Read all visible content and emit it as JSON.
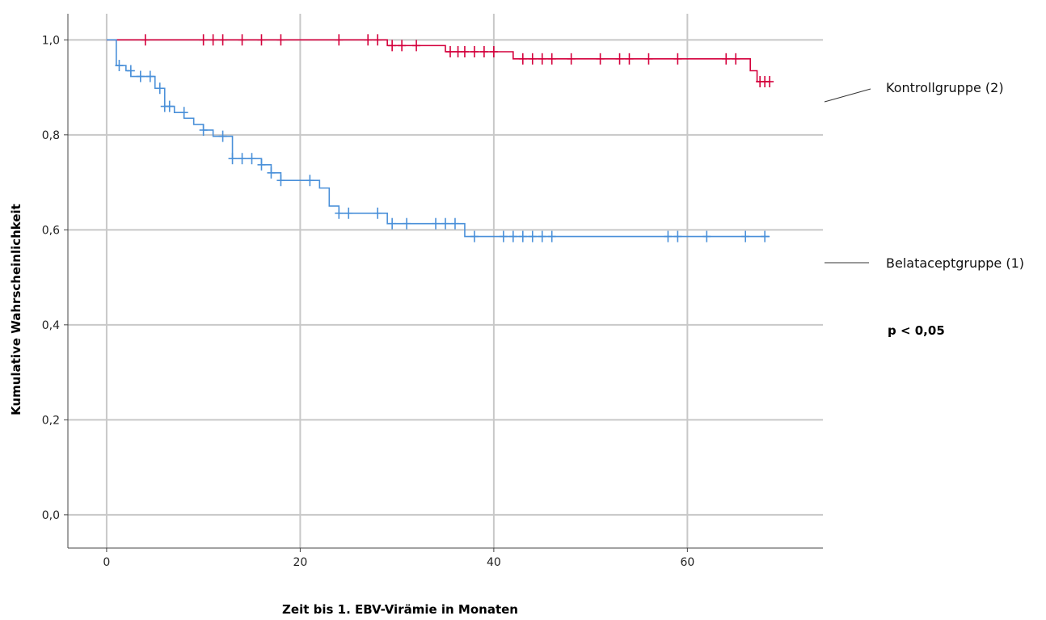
{
  "chart_data": {
    "type": "line",
    "title": "",
    "xlabel": "Zeit bis 1. EBV-Virämie in Monaten",
    "ylabel": "Kumulative Wahrscheinlichkeit",
    "xlim": [
      -4,
      74
    ],
    "ylim": [
      -0.07,
      1.055
    ],
    "x_ticks": [
      0,
      20,
      40,
      60
    ],
    "x_tick_labels": [
      "0",
      "20",
      "40",
      "60"
    ],
    "y_ticks": [
      0,
      0.2,
      0.4,
      0.6,
      0.8,
      1.0
    ],
    "y_tick_labels": [
      "0,0",
      "0,2",
      "0,4",
      "0,6",
      "0,8",
      "1,0"
    ],
    "grid": true,
    "annotation": "p < 0,05",
    "series": [
      {
        "name": "Kontrollgruppe (2)",
        "color": "#d4003c",
        "steps": [
          [
            0,
            1.0
          ],
          [
            29,
            0.988
          ],
          [
            35,
            0.975
          ],
          [
            42,
            0.96
          ],
          [
            66.5,
            0.935
          ],
          [
            67.2,
            0.912
          ],
          [
            68.5,
            0.912
          ]
        ],
        "censored": [
          [
            4,
            1.0
          ],
          [
            10,
            1.0
          ],
          [
            11,
            1.0
          ],
          [
            12,
            1.0
          ],
          [
            14,
            1.0
          ],
          [
            16,
            1.0
          ],
          [
            18,
            1.0
          ],
          [
            24,
            1.0
          ],
          [
            27,
            1.0
          ],
          [
            28,
            1.0
          ],
          [
            29.5,
            0.988
          ],
          [
            30.5,
            0.988
          ],
          [
            32,
            0.988
          ],
          [
            35.5,
            0.975
          ],
          [
            36.3,
            0.975
          ],
          [
            37,
            0.975
          ],
          [
            38,
            0.975
          ],
          [
            39,
            0.975
          ],
          [
            40,
            0.975
          ],
          [
            43,
            0.96
          ],
          [
            44,
            0.96
          ],
          [
            45,
            0.96
          ],
          [
            46,
            0.96
          ],
          [
            48,
            0.96
          ],
          [
            51,
            0.96
          ],
          [
            53,
            0.96
          ],
          [
            54,
            0.96
          ],
          [
            56,
            0.96
          ],
          [
            59,
            0.96
          ],
          [
            64,
            0.96
          ],
          [
            65,
            0.96
          ],
          [
            67.5,
            0.912
          ],
          [
            68,
            0.912
          ],
          [
            68.5,
            0.912
          ]
        ]
      },
      {
        "name": "Belataceptgruppe (1)",
        "color": "#4a90d9",
        "steps": [
          [
            0,
            1.0
          ],
          [
            1,
            0.946
          ],
          [
            2,
            0.935
          ],
          [
            2.5,
            0.923
          ],
          [
            5,
            0.898
          ],
          [
            6,
            0.86
          ],
          [
            7,
            0.847
          ],
          [
            8,
            0.835
          ],
          [
            9,
            0.822
          ],
          [
            10,
            0.81
          ],
          [
            11,
            0.797
          ],
          [
            13,
            0.75
          ],
          [
            16,
            0.737
          ],
          [
            17,
            0.72
          ],
          [
            18,
            0.704
          ],
          [
            22,
            0.688
          ],
          [
            23,
            0.65
          ],
          [
            24,
            0.635
          ],
          [
            29,
            0.613
          ],
          [
            37,
            0.586
          ],
          [
            68.5,
            0.586
          ]
        ],
        "censored": [
          [
            1.3,
            0.946
          ],
          [
            2.5,
            0.935
          ],
          [
            3.5,
            0.923
          ],
          [
            4.5,
            0.923
          ],
          [
            5.5,
            0.898
          ],
          [
            6,
            0.86
          ],
          [
            6.5,
            0.86
          ],
          [
            8,
            0.847
          ],
          [
            10,
            0.81
          ],
          [
            12,
            0.797
          ],
          [
            13,
            0.75
          ],
          [
            14,
            0.75
          ],
          [
            15,
            0.75
          ],
          [
            16,
            0.737
          ],
          [
            17,
            0.72
          ],
          [
            18,
            0.704
          ],
          [
            21,
            0.704
          ],
          [
            24,
            0.635
          ],
          [
            25,
            0.635
          ],
          [
            28,
            0.635
          ],
          [
            29.5,
            0.613
          ],
          [
            31,
            0.613
          ],
          [
            34,
            0.613
          ],
          [
            35,
            0.613
          ],
          [
            36,
            0.613
          ],
          [
            38,
            0.586
          ],
          [
            41,
            0.586
          ],
          [
            42,
            0.586
          ],
          [
            43,
            0.586
          ],
          [
            44,
            0.586
          ],
          [
            45,
            0.586
          ],
          [
            46,
            0.586
          ],
          [
            58,
            0.586
          ],
          [
            59,
            0.586
          ],
          [
            62,
            0.586
          ],
          [
            66,
            0.586
          ],
          [
            68,
            0.586
          ]
        ]
      }
    ]
  }
}
